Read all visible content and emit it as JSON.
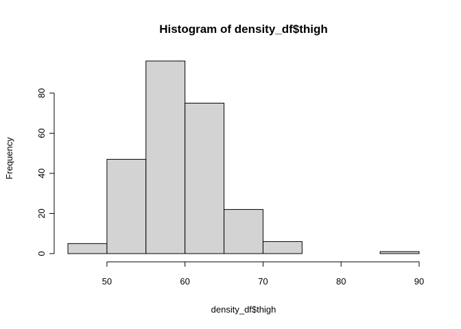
{
  "chart_data": {
    "type": "bar",
    "title": "Histogram of density_df$thigh",
    "xlabel": "density_df$thigh",
    "ylabel": "Frequency",
    "bin_edges": [
      45,
      50,
      55,
      60,
      65,
      70,
      75,
      80,
      85,
      90
    ],
    "values": [
      5,
      47,
      96,
      75,
      22,
      6,
      0,
      0,
      1
    ],
    "xlim": [
      45,
      90
    ],
    "ylim": [
      0,
      96
    ],
    "x_ticks": [
      50,
      60,
      70,
      80,
      90
    ],
    "y_ticks": [
      0,
      20,
      40,
      60,
      80
    ],
    "bar_color": "#d3d3d3",
    "edge_color": "#000000",
    "grid": false,
    "legend": "none"
  }
}
